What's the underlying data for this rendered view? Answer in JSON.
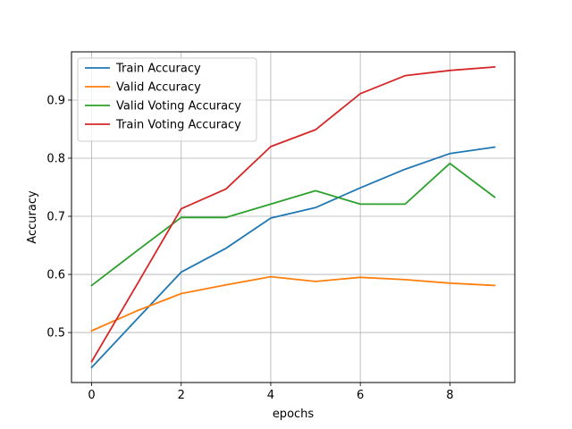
{
  "chart_data": {
    "type": "line",
    "title": "",
    "xlabel": "epochs",
    "ylabel": "Accuracy",
    "xlim": [
      -0.45,
      9.45
    ],
    "ylim": [
      0.414,
      0.983
    ],
    "xticks": [
      0,
      2,
      4,
      6,
      8
    ],
    "xtick_labels": [
      "0",
      "2",
      "4",
      "6",
      "8"
    ],
    "yticks": [
      0.5,
      0.6,
      0.7,
      0.8,
      0.9
    ],
    "ytick_labels": [
      "0.5",
      "0.6",
      "0.7",
      "0.8",
      "0.9"
    ],
    "grid": true,
    "legend_position": "upper-left",
    "x": [
      0,
      1,
      2,
      3,
      4,
      5,
      6,
      7,
      8,
      9
    ],
    "series": [
      {
        "name": "Train Accuracy",
        "color": "#1f77b4",
        "values": [
          0.44,
          0.522,
          0.604,
          0.645,
          0.697,
          0.715,
          0.749,
          0.781,
          0.808,
          0.819
        ]
      },
      {
        "name": "Valid Accuracy",
        "color": "#ff7f0e",
        "values": [
          0.503,
          0.537,
          0.567,
          0.582,
          0.596,
          0.588,
          0.595,
          0.591,
          0.585,
          0.581
        ]
      },
      {
        "name": "Valid Voting Accuracy",
        "color": "#2ca02c",
        "values": [
          0.581,
          0.64,
          0.698,
          0.698,
          0.721,
          0.744,
          0.721,
          0.721,
          0.791,
          0.733
        ]
      },
      {
        "name": "Train Voting Accuracy",
        "color": "#d62728",
        "values": [
          0.45,
          0.581,
          0.713,
          0.747,
          0.82,
          0.849,
          0.911,
          0.942,
          0.951,
          0.957
        ]
      }
    ]
  }
}
